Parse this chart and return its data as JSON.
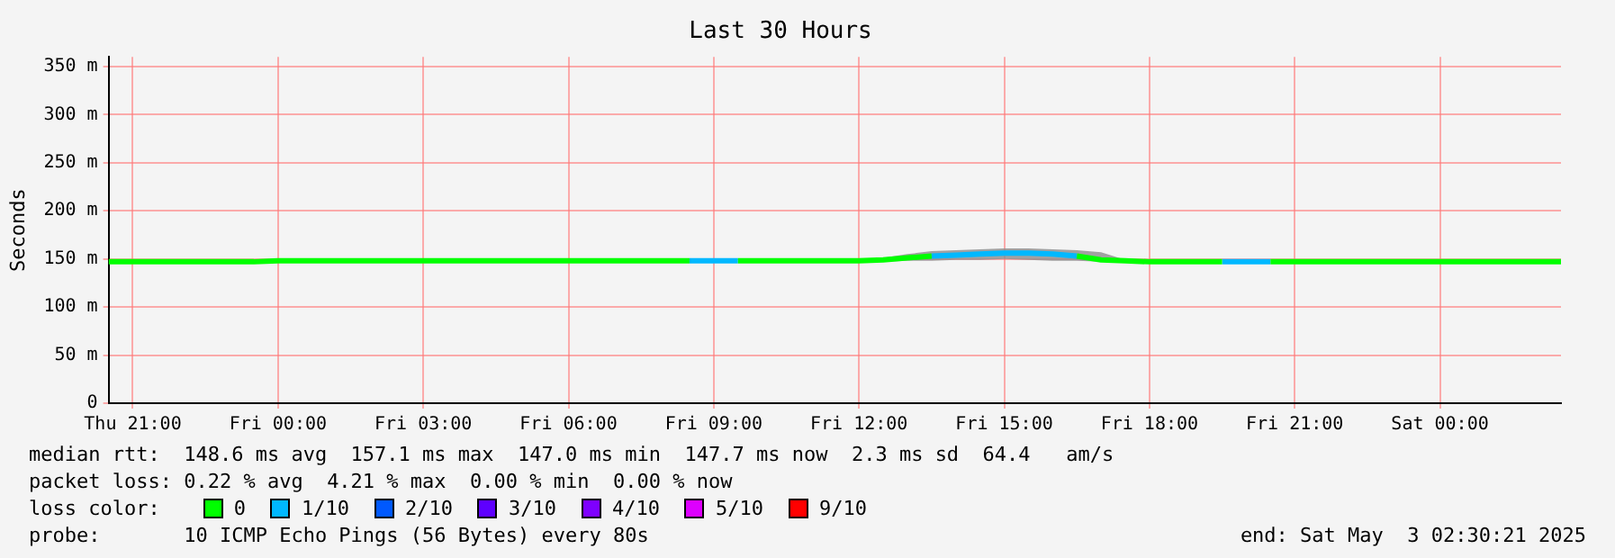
{
  "chart_data": {
    "type": "line",
    "title": "Last 30 Hours",
    "ylabel": "Seconds",
    "x": [
      "2025-05-01T20:30",
      "2025-05-01T21:00",
      "2025-05-01T21:30",
      "2025-05-01T22:00",
      "2025-05-01T22:30",
      "2025-05-01T23:00",
      "2025-05-01T23:30",
      "2025-05-02T00:00",
      "2025-05-02T00:30",
      "2025-05-02T01:00",
      "2025-05-02T01:30",
      "2025-05-02T02:00",
      "2025-05-02T02:30",
      "2025-05-02T03:00",
      "2025-05-02T03:30",
      "2025-05-02T04:00",
      "2025-05-02T04:30",
      "2025-05-02T05:00",
      "2025-05-02T05:30",
      "2025-05-02T06:00",
      "2025-05-02T06:30",
      "2025-05-02T07:00",
      "2025-05-02T07:30",
      "2025-05-02T08:00",
      "2025-05-02T08:30",
      "2025-05-02T09:00",
      "2025-05-02T09:30",
      "2025-05-02T10:00",
      "2025-05-02T10:30",
      "2025-05-02T11:00",
      "2025-05-02T11:30",
      "2025-05-02T12:00",
      "2025-05-02T12:30",
      "2025-05-02T13:00",
      "2025-05-02T13:30",
      "2025-05-02T14:00",
      "2025-05-02T14:30",
      "2025-05-02T15:00",
      "2025-05-02T15:30",
      "2025-05-02T16:00",
      "2025-05-02T16:30",
      "2025-05-02T17:00",
      "2025-05-02T17:30",
      "2025-05-02T18:00",
      "2025-05-02T18:30",
      "2025-05-02T19:00",
      "2025-05-02T19:30",
      "2025-05-02T20:00",
      "2025-05-02T20:30",
      "2025-05-02T21:00",
      "2025-05-02T21:30",
      "2025-05-02T22:00",
      "2025-05-02T22:30",
      "2025-05-02T23:00",
      "2025-05-02T23:30",
      "2025-05-03T00:00",
      "2025-05-03T00:30",
      "2025-05-03T01:00",
      "2025-05-03T01:30",
      "2025-05-03T02:00",
      "2025-05-03T02:30"
    ],
    "xlim": [
      "2025-05-01T20:30",
      "2025-05-03T02:30"
    ],
    "xticks": [
      {
        "value": "2025-05-01T21:00",
        "label": "Thu 21:00"
      },
      {
        "value": "2025-05-02T00:00",
        "label": "Fri 00:00"
      },
      {
        "value": "2025-05-02T03:00",
        "label": "Fri 03:00"
      },
      {
        "value": "2025-05-02T06:00",
        "label": "Fri 06:00"
      },
      {
        "value": "2025-05-02T09:00",
        "label": "Fri 09:00"
      },
      {
        "value": "2025-05-02T12:00",
        "label": "Fri 12:00"
      },
      {
        "value": "2025-05-02T15:00",
        "label": "Fri 15:00"
      },
      {
        "value": "2025-05-02T18:00",
        "label": "Fri 18:00"
      },
      {
        "value": "2025-05-02T21:00",
        "label": "Fri 21:00"
      },
      {
        "value": "2025-05-03T00:00",
        "label": "Sat 00:00"
      }
    ],
    "ylim": [
      0,
      360
    ],
    "yticks": [
      0,
      {
        "value": 50,
        "label": "50 m"
      },
      {
        "value": 100,
        "label": "100 m"
      },
      {
        "value": 150,
        "label": "150 m"
      },
      {
        "value": 200,
        "label": "200 m"
      },
      {
        "value": 250,
        "label": "250 m"
      },
      {
        "value": 300,
        "label": "300 m"
      },
      {
        "value": 350,
        "label": "350 m"
      }
    ],
    "grid": true,
    "legend": "bottom",
    "legend_title": "loss color:",
    "series": [
      {
        "name": "0",
        "color": "#00ff00",
        "values": [
          147,
          147,
          147,
          147,
          147,
          147,
          147,
          148,
          148,
          148,
          148,
          148,
          148,
          148,
          148,
          148,
          148,
          148,
          148,
          148,
          148,
          148,
          148,
          148,
          148,
          null,
          148,
          148,
          148,
          148,
          148,
          148,
          149,
          151,
          153,
          null,
          null,
          null,
          null,
          null,
          153,
          149,
          148,
          147,
          147,
          147,
          147,
          null,
          147,
          147,
          147,
          147,
          147,
          147,
          147,
          147,
          147,
          147,
          147,
          147,
          147
        ],
        "lower": [
          null,
          null,
          null,
          null,
          null,
          null,
          null,
          null,
          null,
          null,
          null,
          null,
          null,
          null,
          null,
          null,
          null,
          null,
          null,
          null,
          null,
          null,
          null,
          null,
          null,
          null,
          null,
          null,
          null,
          null,
          null,
          null,
          147,
          148,
          148,
          149,
          149,
          150,
          149,
          148,
          148,
          147,
          147,
          null,
          null,
          null,
          null,
          null,
          null,
          null,
          null,
          null,
          null,
          null,
          null,
          null,
          null,
          null,
          null,
          null,
          null
        ],
        "upper": [
          null,
          null,
          null,
          null,
          null,
          null,
          null,
          null,
          null,
          null,
          null,
          null,
          null,
          null,
          null,
          null,
          null,
          null,
          null,
          null,
          null,
          null,
          null,
          null,
          null,
          null,
          null,
          null,
          null,
          null,
          null,
          null,
          151,
          155,
          158,
          159,
          160,
          161,
          161,
          160,
          159,
          157,
          149,
          null,
          null,
          null,
          null,
          null,
          null,
          null,
          null,
          null,
          null,
          null,
          null,
          null,
          null,
          null,
          null,
          null,
          null
        ]
      },
      {
        "name": "1/10",
        "color": "#00b8ff",
        "values": [
          null,
          null,
          null,
          null,
          null,
          null,
          null,
          null,
          null,
          null,
          null,
          null,
          null,
          null,
          null,
          null,
          null,
          null,
          null,
          null,
          null,
          null,
          null,
          null,
          148,
          148,
          148,
          null,
          null,
          null,
          null,
          null,
          null,
          null,
          153,
          154,
          155,
          156,
          156,
          155,
          153,
          null,
          null,
          null,
          null,
          null,
          147,
          147,
          147,
          null,
          null,
          null,
          null,
          null,
          null,
          null,
          null,
          null,
          null,
          null,
          null
        ]
      },
      {
        "name": "2/10",
        "color": "#0059ff",
        "values": [
          null,
          null,
          null,
          null,
          null,
          null,
          null,
          null,
          null,
          null,
          null,
          null,
          null,
          null,
          null,
          null,
          null,
          null,
          null,
          null,
          null,
          null,
          null,
          null,
          null,
          null,
          null,
          null,
          null,
          null,
          null,
          null,
          null,
          null,
          null,
          null,
          null,
          null,
          null,
          null,
          null,
          null,
          null,
          null,
          null,
          null,
          null,
          null,
          null,
          null,
          null,
          null,
          null,
          null,
          null,
          null,
          null,
          null,
          null,
          null,
          null
        ]
      },
      {
        "name": "3/10",
        "color": "#5e00ff",
        "values": [
          null,
          null,
          null,
          null,
          null,
          null,
          null,
          null,
          null,
          null,
          null,
          null,
          null,
          null,
          null,
          null,
          null,
          null,
          null,
          null,
          null,
          null,
          null,
          null,
          null,
          null,
          null,
          null,
          null,
          null,
          null,
          null,
          null,
          null,
          null,
          null,
          null,
          null,
          null,
          null,
          null,
          null,
          null,
          null,
          null,
          null,
          null,
          null,
          null,
          null,
          null,
          null,
          null,
          null,
          null,
          null,
          null,
          null,
          null,
          null,
          null
        ]
      },
      {
        "name": "4/10",
        "color": "#7e00ff",
        "values": [
          null,
          null,
          null,
          null,
          null,
          null,
          null,
          null,
          null,
          null,
          null,
          null,
          null,
          null,
          null,
          null,
          null,
          null,
          null,
          null,
          null,
          null,
          null,
          null,
          null,
          null,
          null,
          null,
          null,
          null,
          null,
          null,
          null,
          null,
          null,
          null,
          null,
          null,
          null,
          null,
          null,
          null,
          null,
          null,
          null,
          null,
          null,
          null,
          null,
          null,
          null,
          null,
          null,
          null,
          null,
          null,
          null,
          null,
          null,
          null,
          null
        ]
      },
      {
        "name": "5/10",
        "color": "#dd00ff",
        "values": [
          null,
          null,
          null,
          null,
          null,
          null,
          null,
          null,
          null,
          null,
          null,
          null,
          null,
          null,
          null,
          null,
          null,
          null,
          null,
          null,
          null,
          null,
          null,
          null,
          null,
          null,
          null,
          null,
          null,
          null,
          null,
          null,
          null,
          null,
          null,
          null,
          null,
          null,
          null,
          null,
          null,
          null,
          null,
          null,
          null,
          null,
          null,
          null,
          null,
          null,
          null,
          null,
          null,
          null,
          null,
          null,
          null,
          null,
          null,
          null,
          null
        ]
      },
      {
        "name": "9/10",
        "color": "#ff0000",
        "values": [
          null,
          null,
          null,
          null,
          null,
          null,
          null,
          null,
          null,
          null,
          null,
          null,
          null,
          null,
          null,
          null,
          null,
          null,
          null,
          null,
          null,
          null,
          null,
          null,
          null,
          null,
          null,
          null,
          null,
          null,
          null,
          null,
          null,
          null,
          null,
          null,
          null,
          null,
          null,
          null,
          null,
          null,
          null,
          null,
          null,
          null,
          null,
          null,
          null,
          null,
          null,
          null,
          null,
          null,
          null,
          null,
          null,
          null,
          null,
          null,
          null
        ]
      }
    ],
    "annotations": [
      "median rtt:  148.6 ms avg  157.1 ms max  147.0 ms min  147.7 ms now  2.3 ms sd  64.4   am/s",
      "packet loss: 0.22 % avg  4.21 % max  0.00 % min  0.00 % now",
      "probe:       10 ICMP Echo Pings (56 Bytes) every 80s",
      "end: Sat May  3 02:30:21 2025"
    ]
  }
}
